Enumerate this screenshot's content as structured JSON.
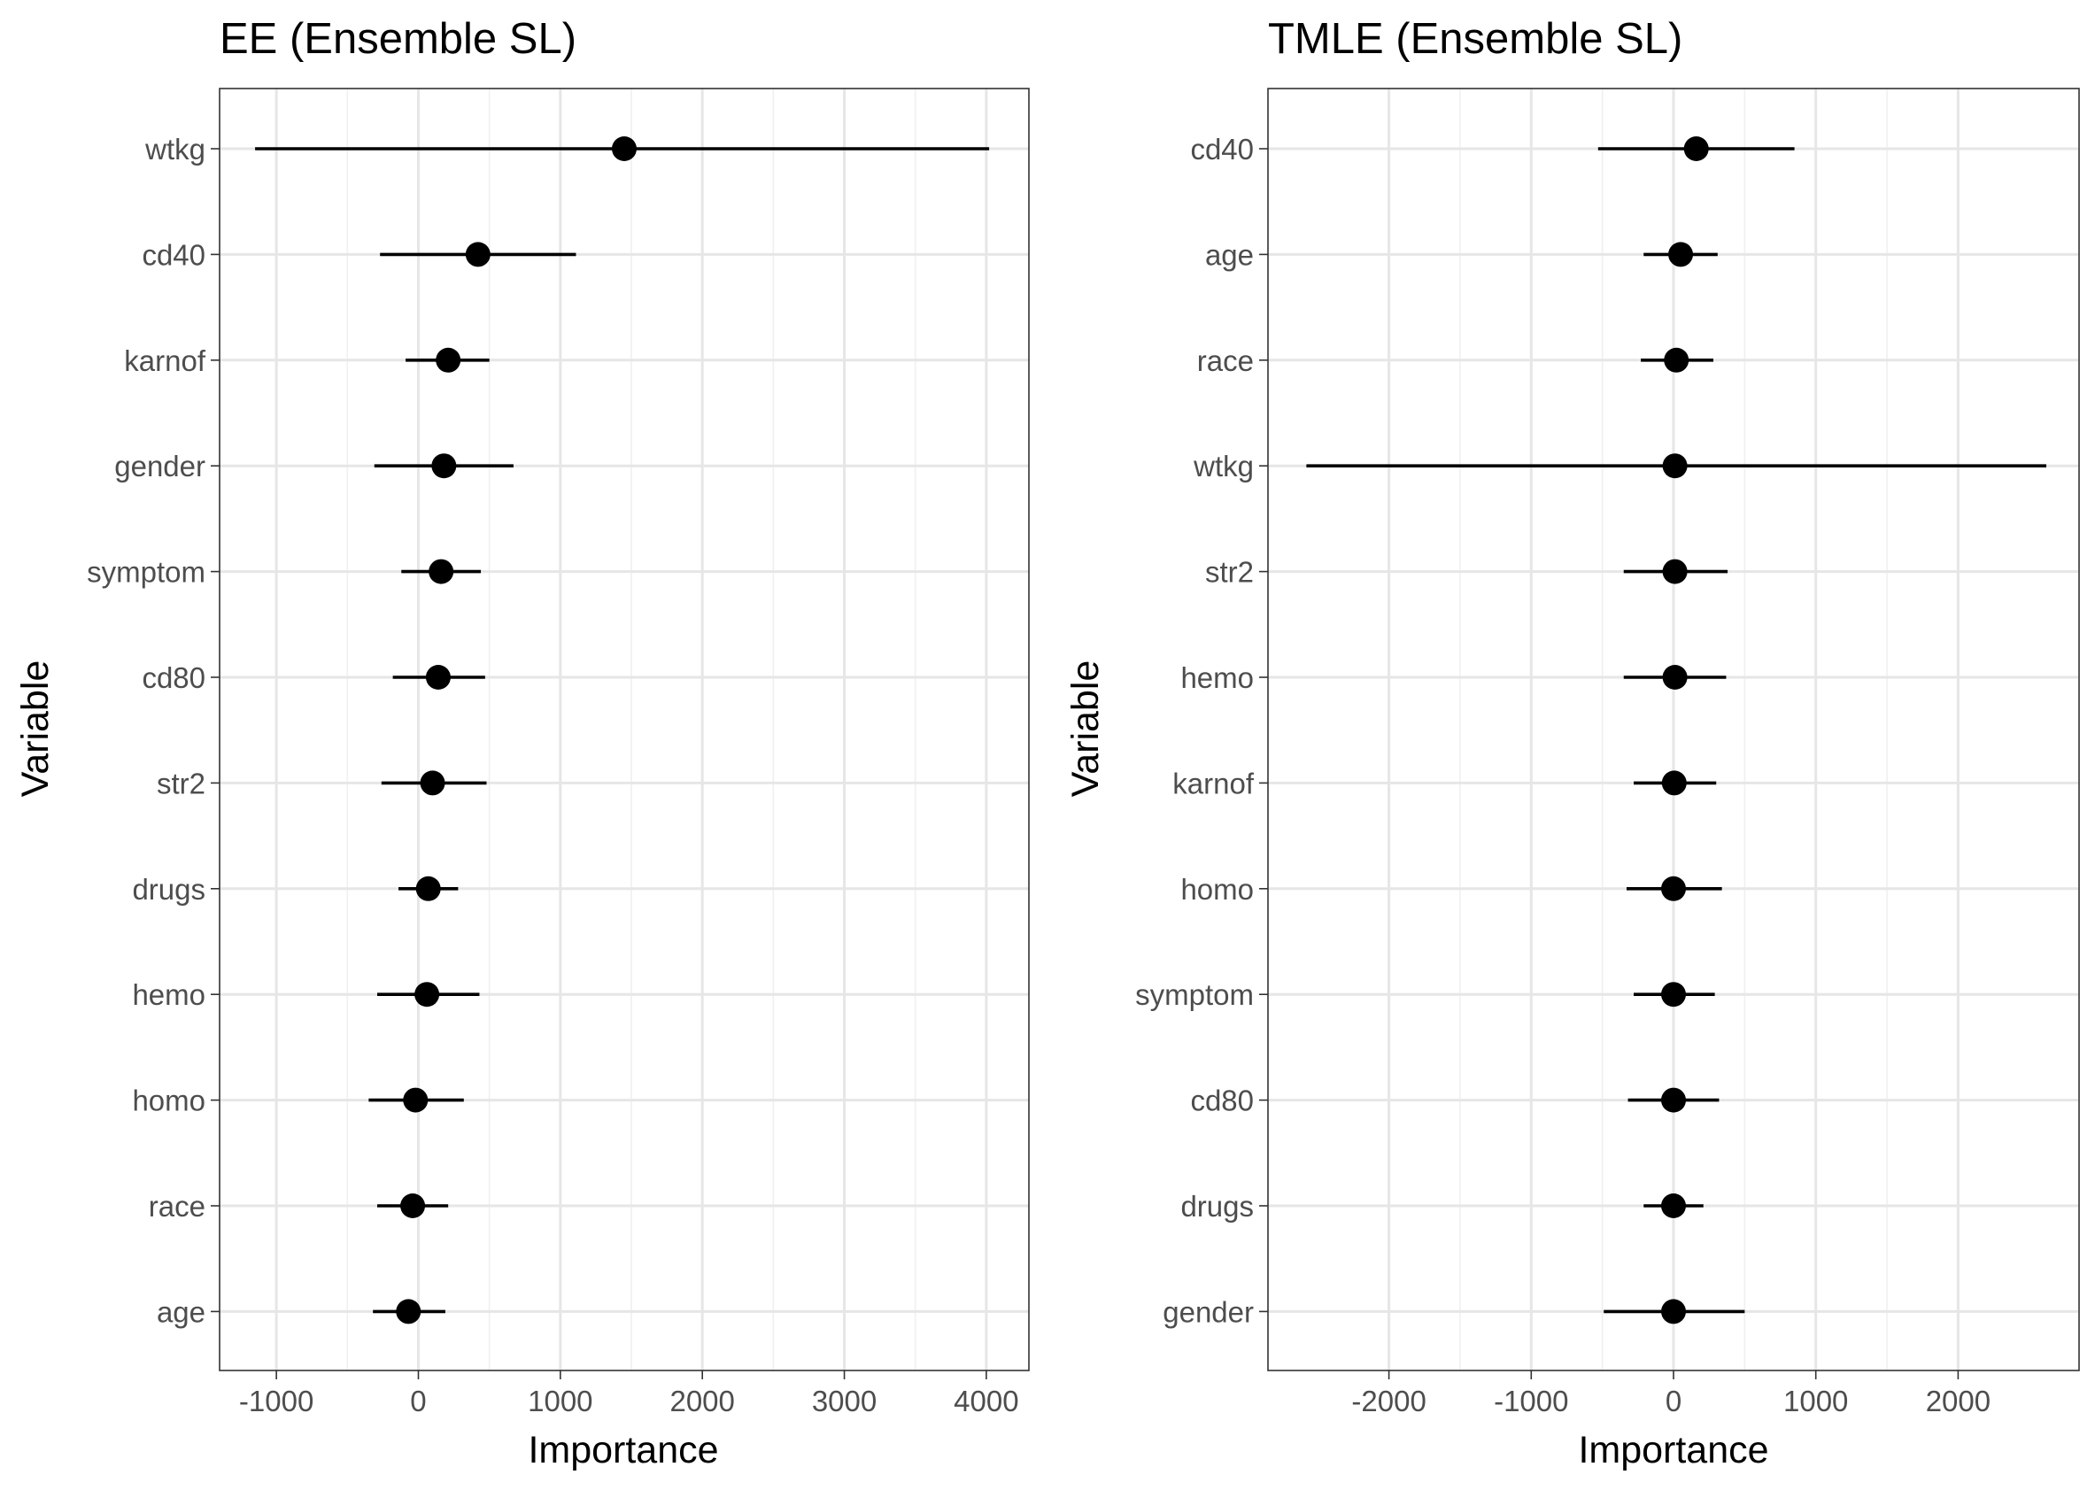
{
  "chart_data": [
    {
      "type": "scatter",
      "title": "EE (Ensemble SL)",
      "xlabel": "Importance",
      "ylabel": "Variable",
      "xlim": [
        -1400,
        4300
      ],
      "xticks": [
        -1000,
        0,
        1000,
        2000,
        3000,
        4000
      ],
      "xtick_labels": [
        "-1000",
        "0",
        "1000",
        "2000",
        "3000",
        "4000"
      ],
      "grid": true,
      "points": [
        {
          "variable": "wtkg",
          "estimate": 1450,
          "lower": -1150,
          "upper": 4020
        },
        {
          "variable": "cd40",
          "estimate": 420,
          "lower": -270,
          "upper": 1110
        },
        {
          "variable": "karnof",
          "estimate": 210,
          "lower": -90,
          "upper": 500
        },
        {
          "variable": "gender",
          "estimate": 180,
          "lower": -310,
          "upper": 670
        },
        {
          "variable": "symptom",
          "estimate": 160,
          "lower": -120,
          "upper": 440
        },
        {
          "variable": "cd80",
          "estimate": 140,
          "lower": -180,
          "upper": 470
        },
        {
          "variable": "str2",
          "estimate": 100,
          "lower": -260,
          "upper": 480
        },
        {
          "variable": "drugs",
          "estimate": 70,
          "lower": -140,
          "upper": 280
        },
        {
          "variable": "hemo",
          "estimate": 60,
          "lower": -290,
          "upper": 430
        },
        {
          "variable": "homo",
          "estimate": -20,
          "lower": -350,
          "upper": 320
        },
        {
          "variable": "race",
          "estimate": -40,
          "lower": -290,
          "upper": 210
        },
        {
          "variable": "age",
          "estimate": -70,
          "lower": -320,
          "upper": 190
        }
      ]
    },
    {
      "type": "scatter",
      "title": "TMLE (Ensemble SL)",
      "xlabel": "Importance",
      "ylabel": "Variable",
      "xlim": [
        -2850,
        2850
      ],
      "xticks": [
        -2000,
        -1000,
        0,
        1000,
        2000
      ],
      "xtick_labels": [
        "-2000",
        "-1000",
        "0",
        "1000",
        "2000"
      ],
      "grid": true,
      "points": [
        {
          "variable": "cd40",
          "estimate": 160,
          "lower": -530,
          "upper": 850
        },
        {
          "variable": "age",
          "estimate": 50,
          "lower": -210,
          "upper": 310
        },
        {
          "variable": "race",
          "estimate": 20,
          "lower": -230,
          "upper": 280
        },
        {
          "variable": "wtkg",
          "estimate": 10,
          "lower": -2580,
          "upper": 2620
        },
        {
          "variable": "str2",
          "estimate": 10,
          "lower": -350,
          "upper": 380
        },
        {
          "variable": "hemo",
          "estimate": 10,
          "lower": -350,
          "upper": 370
        },
        {
          "variable": "karnof",
          "estimate": 5,
          "lower": -280,
          "upper": 300
        },
        {
          "variable": "homo",
          "estimate": 0,
          "lower": -330,
          "upper": 340
        },
        {
          "variable": "symptom",
          "estimate": 0,
          "lower": -280,
          "upper": 290
        },
        {
          "variable": "cd80",
          "estimate": 0,
          "lower": -320,
          "upper": 320
        },
        {
          "variable": "drugs",
          "estimate": 0,
          "lower": -210,
          "upper": 210
        },
        {
          "variable": "gender",
          "estimate": 0,
          "lower": -490,
          "upper": 500
        }
      ]
    }
  ]
}
